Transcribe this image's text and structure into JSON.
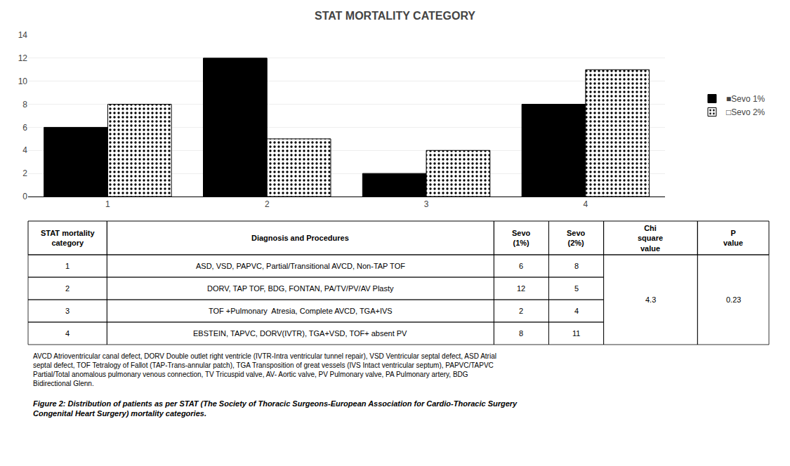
{
  "chart_data": {
    "type": "bar",
    "title": "STAT MORTALITY CATEGORY",
    "categories": [
      1,
      2,
      3,
      4
    ],
    "series": [
      {
        "name": "■Sevo 1%",
        "color": "#000000",
        "values": [
          6,
          12,
          2,
          8
        ]
      },
      {
        "name": "□Sevo 2%",
        "color": "#ffffff",
        "values": [
          8,
          5,
          4,
          11
        ]
      }
    ],
    "ylim": [
      0,
      14
    ],
    "yticks": [
      0,
      2,
      4,
      6,
      8,
      10,
      12,
      14
    ],
    "grid": true,
    "legend": "right",
    "table": {
      "headers": [
        "STAT mortality\ncategory",
        "Diagnosis and Procedures",
        "Sevo\n(1%)",
        "Sevo\n(2%)",
        "Chi\nsquare\nvalue",
        "P\nvalue"
      ],
      "rows": [
        [
          "1",
          "ASD, VSD, PAPVC, Partial/Transitional AVCD, Non-TAP TOF",
          "6",
          "8",
          null,
          null
        ],
        [
          "2",
          "DORV, TAP TOF, BDG, FONTAN, PA/TV/PV/AV Plasty",
          "12",
          "5",
          "4.3",
          "0.23"
        ],
        [
          "3",
          "TOF +Pulmonary  Atresia, Complete AVCD, TGA+IVS",
          "2",
          "4",
          null,
          null
        ],
        [
          "4",
          "EBSTEIN, TAPVC, DORV(IVTR), TGA+VSD, TOF+ absent PV",
          "8",
          "11",
          null,
          null
        ]
      ]
    },
    "footnote": "AVCD Atrioventricular canal defect, DORV Double outlet right ventricle (IVTR-Intra ventricular tunnel repair), VSD Ventricular septal defect, ASD Atrial\nseptal defect, TOF Tetralogy of Fallot (TAP-Trans-annular patch), TGA Transposition of great vessels (IVS Intact ventricular septum), PAPVC/TAPVC\nPartial/Total anomalous pulmonary venous connection, TV Tricuspid valve, AV- Aortic valve, PV Pulmonary valve, PA Pulmonary artery, BDG\nBidirectional Glenn.",
    "caption": "Figure 2: Distribution of patients as per STAT (The Society of Thoracic Surgeons-European Association for Cardio-Thoracic Surgery\nCongenital Heart Surgery) mortality categories."
  }
}
